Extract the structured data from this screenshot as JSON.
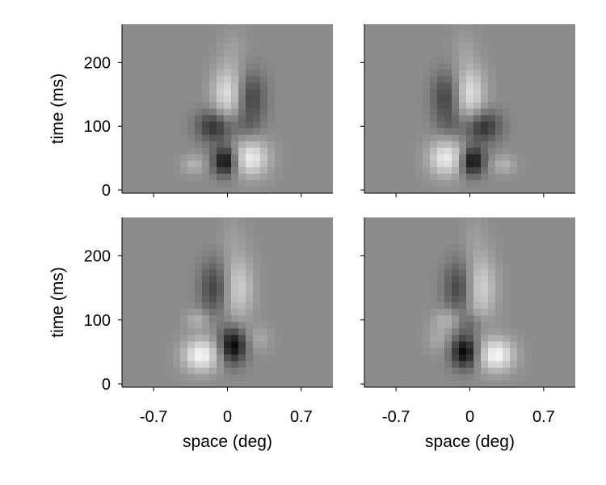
{
  "chart_data": [
    {
      "type": "heatmap",
      "panel": "top-left",
      "xlabel": "",
      "ylabel": "time (ms)",
      "x_ticks": [
        -0.7,
        0,
        0.7
      ],
      "x_tick_labels_shown": false,
      "y_ticks": [
        0,
        100,
        200
      ],
      "y_tick_labels_shown": true,
      "xlim": [
        -1.0,
        1.0
      ],
      "ylim": [
        -5,
        260
      ],
      "background": "#8c8c8c",
      "components": [
        {
          "x": -0.02,
          "y": 45,
          "sx": 0.08,
          "sy": 16,
          "amp": -1.0
        },
        {
          "x": 0.22,
          "y": 50,
          "sx": 0.12,
          "sy": 20,
          "amp": 0.85
        },
        {
          "x": -0.32,
          "y": 40,
          "sx": 0.08,
          "sy": 10,
          "amp": 0.35
        },
        {
          "x": -0.12,
          "y": 100,
          "sx": 0.12,
          "sy": 18,
          "amp": -0.7
        },
        {
          "x": 0.18,
          "y": 100,
          "sx": 0.1,
          "sy": 15,
          "amp": -0.2
        },
        {
          "x": 0.0,
          "y": 150,
          "sx": 0.1,
          "sy": 30,
          "amp": 0.75
        },
        {
          "x": 0.22,
          "y": 145,
          "sx": 0.1,
          "sy": 28,
          "amp": -0.55
        },
        {
          "x": 0.05,
          "y": 220,
          "sx": 0.08,
          "sy": 25,
          "amp": 0.15
        }
      ]
    },
    {
      "type": "heatmap",
      "panel": "top-right",
      "xlabel": "",
      "ylabel": "",
      "x_ticks": [
        -0.7,
        0,
        0.7
      ],
      "x_tick_labels_shown": false,
      "y_ticks": [
        0,
        100,
        200
      ],
      "y_tick_labels_shown": false,
      "xlim": [
        -1.0,
        1.0
      ],
      "ylim": [
        -5,
        260
      ],
      "background": "#8c8c8c",
      "components": [
        {
          "x": 0.02,
          "y": 45,
          "sx": 0.08,
          "sy": 16,
          "amp": -1.0
        },
        {
          "x": -0.22,
          "y": 50,
          "sx": 0.12,
          "sy": 20,
          "amp": 0.85
        },
        {
          "x": 0.32,
          "y": 40,
          "sx": 0.08,
          "sy": 10,
          "amp": 0.35
        },
        {
          "x": 0.12,
          "y": 100,
          "sx": 0.12,
          "sy": 18,
          "amp": -0.7
        },
        {
          "x": -0.18,
          "y": 100,
          "sx": 0.1,
          "sy": 15,
          "amp": -0.2
        },
        {
          "x": 0.0,
          "y": 150,
          "sx": 0.1,
          "sy": 30,
          "amp": 0.75
        },
        {
          "x": -0.22,
          "y": 145,
          "sx": 0.1,
          "sy": 28,
          "amp": -0.55
        },
        {
          "x": -0.05,
          "y": 220,
          "sx": 0.08,
          "sy": 25,
          "amp": 0.15
        }
      ]
    },
    {
      "type": "heatmap",
      "panel": "bottom-left",
      "xlabel": "space (deg)",
      "ylabel": "time (ms)",
      "x_ticks": [
        -0.7,
        0,
        0.7
      ],
      "x_tick_labels_shown": true,
      "y_ticks": [
        0,
        100,
        200
      ],
      "y_tick_labels_shown": true,
      "xlim": [
        -1.0,
        1.0
      ],
      "ylim": [
        -5,
        260
      ],
      "background": "#8c8c8c",
      "components": [
        {
          "x": 0.05,
          "y": 60,
          "sx": 0.09,
          "sy": 20,
          "amp": -1.0
        },
        {
          "x": -0.25,
          "y": 45,
          "sx": 0.12,
          "sy": 18,
          "amp": 0.95
        },
        {
          "x": 0.3,
          "y": 70,
          "sx": 0.08,
          "sy": 14,
          "amp": 0.25
        },
        {
          "x": -0.28,
          "y": 100,
          "sx": 0.08,
          "sy": 10,
          "amp": 0.35
        },
        {
          "x": -0.12,
          "y": 150,
          "sx": 0.1,
          "sy": 30,
          "amp": -0.55
        },
        {
          "x": 0.1,
          "y": 150,
          "sx": 0.1,
          "sy": 35,
          "amp": 0.6
        },
        {
          "x": 0.05,
          "y": 230,
          "sx": 0.08,
          "sy": 25,
          "amp": 0.12
        }
      ]
    },
    {
      "type": "heatmap",
      "panel": "bottom-right",
      "xlabel": "space (deg)",
      "ylabel": "",
      "x_ticks": [
        -0.7,
        0,
        0.7
      ],
      "x_tick_labels_shown": true,
      "y_ticks": [
        0,
        100,
        200
      ],
      "y_tick_labels_shown": false,
      "xlim": [
        -1.0,
        1.0
      ],
      "ylim": [
        -5,
        260
      ],
      "background": "#8c8c8c",
      "components": [
        {
          "x": -0.05,
          "y": 50,
          "sx": 0.09,
          "sy": 18,
          "amp": -1.0
        },
        {
          "x": 0.25,
          "y": 45,
          "sx": 0.12,
          "sy": 18,
          "amp": 0.95
        },
        {
          "x": -0.3,
          "y": 70,
          "sx": 0.08,
          "sy": 14,
          "amp": 0.25
        },
        {
          "x": -0.2,
          "y": 100,
          "sx": 0.1,
          "sy": 12,
          "amp": 0.4
        },
        {
          "x": 0.0,
          "y": 95,
          "sx": 0.1,
          "sy": 12,
          "amp": -0.3
        },
        {
          "x": -0.1,
          "y": 150,
          "sx": 0.1,
          "sy": 30,
          "amp": -0.55
        },
        {
          "x": 0.1,
          "y": 150,
          "sx": 0.1,
          "sy": 35,
          "amp": 0.65
        },
        {
          "x": 0.05,
          "y": 230,
          "sx": 0.08,
          "sy": 25,
          "amp": 0.12
        }
      ]
    }
  ]
}
